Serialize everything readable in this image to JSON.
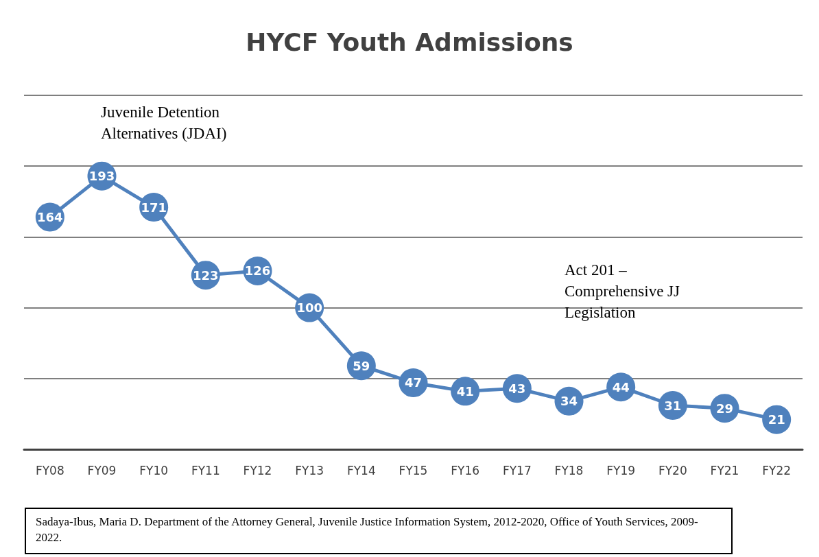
{
  "chart_data": {
    "type": "line",
    "title": "HYCF Youth Admissions",
    "categories": [
      "FY08",
      "FY09",
      "FY10",
      "FY11",
      "FY12",
      "FY13",
      "FY14",
      "FY15",
      "FY16",
      "FY17",
      "FY18",
      "FY19",
      "FY20",
      "FY21",
      "FY22"
    ],
    "series": [
      {
        "color": "#4f81bd",
        "values": [
          164,
          193,
          171,
          123,
          126,
          100,
          59,
          47,
          41,
          43,
          34,
          44,
          31,
          29,
          21
        ]
      }
    ],
    "ylim": [
      0,
      250
    ],
    "yticks": [
      {
        "value": 0,
        "label": null
      },
      {
        "value": 50,
        "label": null
      },
      {
        "value": 100,
        "label": null
      },
      {
        "value": 150,
        "label": null
      },
      {
        "value": 200,
        "label": null
      },
      {
        "value": 250,
        "label": null
      }
    ],
    "tick_labels": "x",
    "grid": "y",
    "marker": "circle",
    "data_labels": true,
    "annotations": [
      "Juvenile Detention Alternatives (JDAI)",
      "Act 201 – Comprehensive JJ Legislation",
      "Sadaya-Ibus, Maria D. Department of the Attorney General, Juvenile Justice Information System, 2012-2020, Office of Youth Services, 2009-2022."
    ]
  }
}
